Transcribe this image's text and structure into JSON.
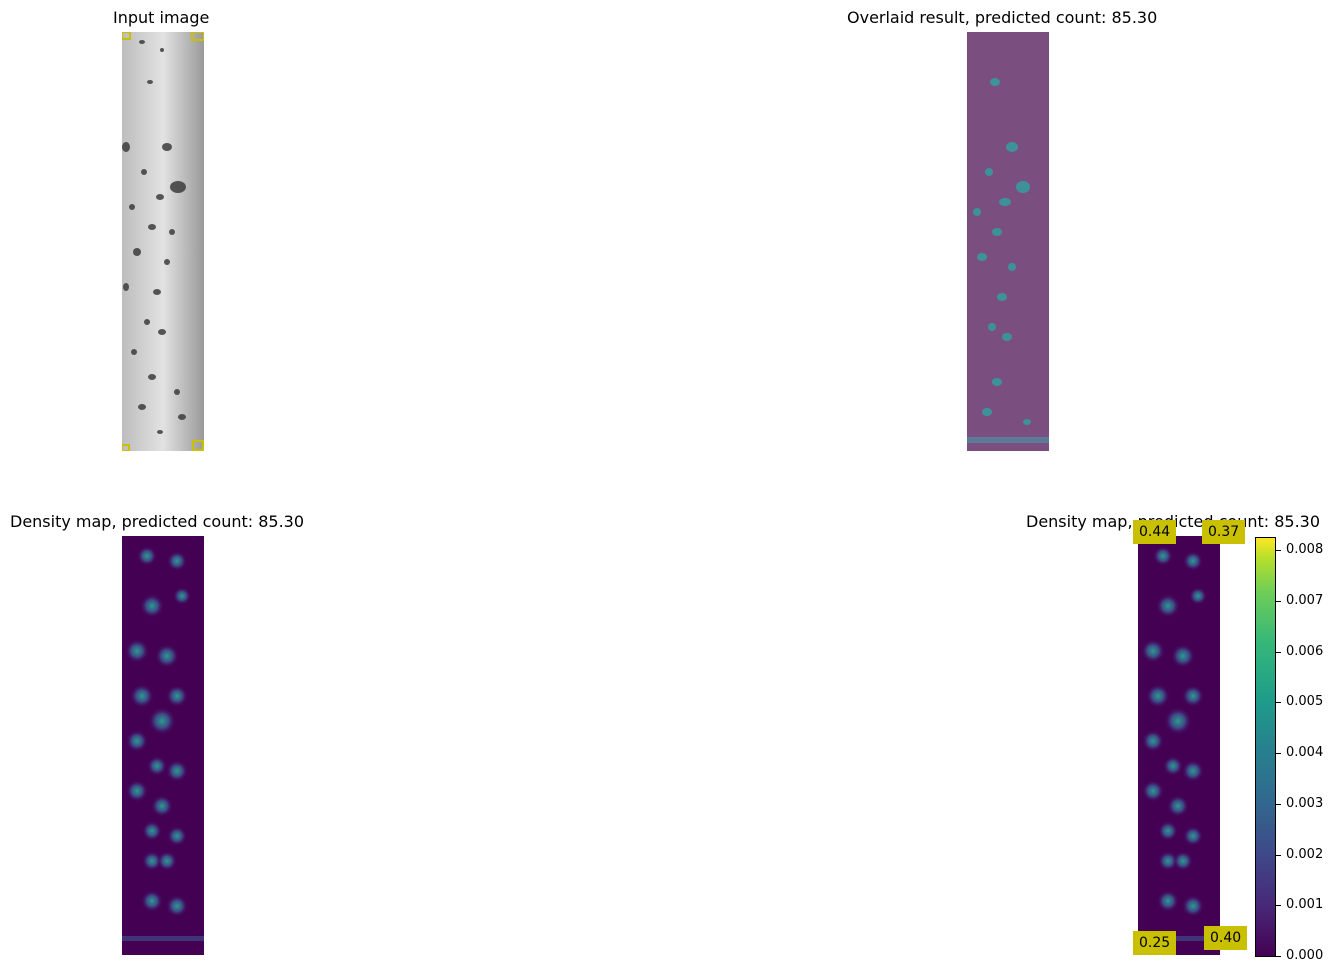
{
  "panels": {
    "input_title": "Input image",
    "overlay_title": "Overlaid result, predicted count: 85.30",
    "density_title": "Density map, predicted count: 85.30",
    "density2_title": "Density map, predicted count: 85.30"
  },
  "corner_scores": {
    "top_left": "0.44",
    "top_right": "0.37",
    "bottom_left": "0.25",
    "bottom_right": "0.40"
  },
  "colorbar": {
    "ticks": [
      "0.008",
      "0.007",
      "0.006",
      "0.005",
      "0.004",
      "0.003",
      "0.002",
      "0.001",
      "0.000"
    ],
    "colormap": "viridis"
  },
  "colors": {
    "box_yellow": "#c8c000",
    "density_bg": "#440154",
    "overlay_tint": "#7a4f80"
  }
}
